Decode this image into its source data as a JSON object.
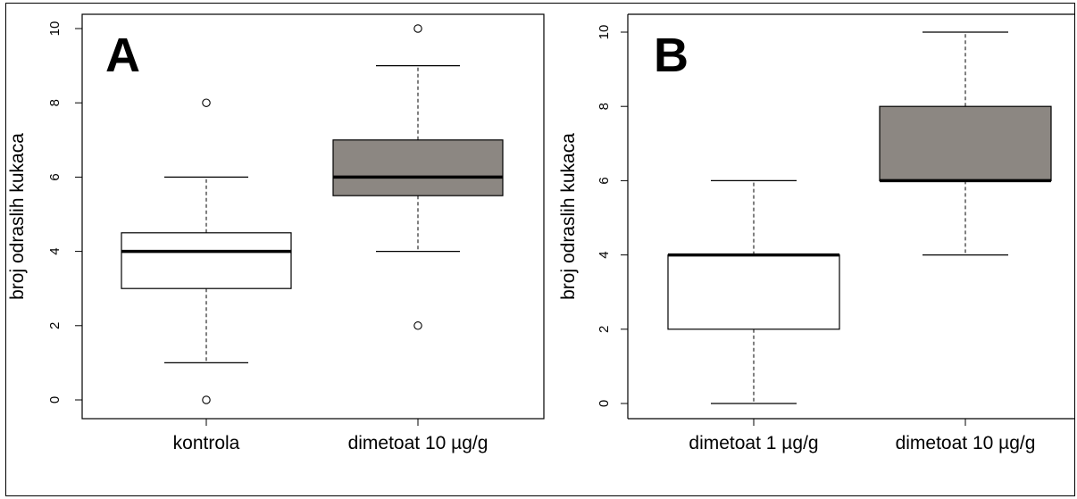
{
  "colors": {
    "white_box": "#ffffff",
    "gray_box": "#8c8782",
    "line": "#000000"
  },
  "chart_data": [
    {
      "type": "box",
      "panel_letter": "A",
      "ylabel": "broj odraslih kukaca",
      "ylim": [
        0,
        10
      ],
      "yticks": [
        "0",
        "2",
        "4",
        "6",
        "8",
        "10"
      ],
      "categories": [
        "kontrola",
        "dimetoat 10 µg/g"
      ],
      "boxes": [
        {
          "category": "kontrola",
          "whisker_low": 1,
          "q1": 3,
          "median": 4,
          "q3": 4.5,
          "whisker_high": 6,
          "outliers": [
            0,
            8
          ],
          "fill": "#ffffff"
        },
        {
          "category": "dimetoat 10 µg/g",
          "whisker_low": 4,
          "q1": 5.5,
          "median": 6,
          "q3": 7,
          "whisker_high": 9,
          "outliers": [
            2,
            10
          ],
          "fill": "#8c8782"
        }
      ]
    },
    {
      "type": "box",
      "panel_letter": "B",
      "ylabel": "broj odraslih kukaca",
      "ylim": [
        0,
        10
      ],
      "yticks": [
        "0",
        "2",
        "4",
        "6",
        "8",
        "10"
      ],
      "categories": [
        "dimetoat 1 µg/g",
        "dimetoat 10 µg/g"
      ],
      "boxes": [
        {
          "category": "dimetoat 1 µg/g",
          "whisker_low": 0,
          "q1": 2,
          "median": 4,
          "q3": 4,
          "whisker_high": 6,
          "outliers": [],
          "fill": "#ffffff"
        },
        {
          "category": "dimetoat 10 µg/g",
          "whisker_low": 4,
          "q1": 6,
          "median": 6,
          "q3": 8,
          "whisker_high": 10,
          "outliers": [],
          "fill": "#8c8782"
        }
      ]
    }
  ]
}
